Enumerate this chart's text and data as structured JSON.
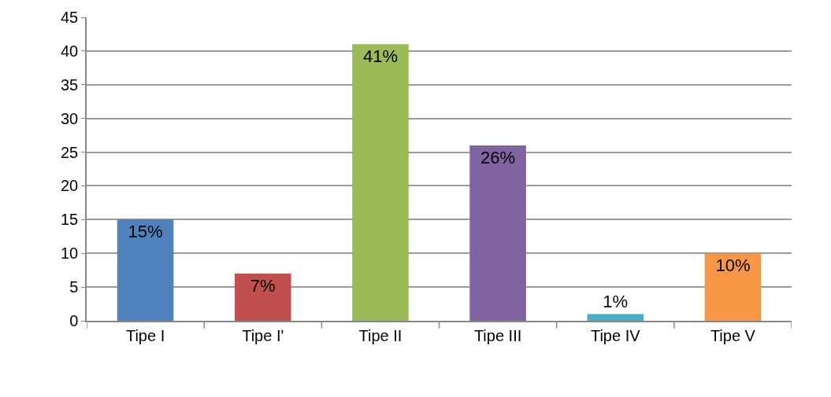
{
  "chart_data": {
    "type": "bar",
    "categories": [
      "Tipe I",
      "Tipe I'",
      "Tipe II",
      "Tipe III",
      "Tipe IV",
      "Tipe V"
    ],
    "values": [
      15,
      7,
      41,
      26,
      1,
      10
    ],
    "colors": [
      "#4f81bd",
      "#c0504d",
      "#9bbb59",
      "#8064a2",
      "#4bacc6",
      "#f79646"
    ],
    "value_labels": [
      "15%",
      "7%",
      "41%",
      "26%",
      "1%",
      "10%"
    ],
    "ylim": [
      0,
      45
    ],
    "yticks": [
      0,
      5,
      10,
      15,
      20,
      25,
      30,
      35,
      40,
      45
    ],
    "grid": "y",
    "legend": false
  }
}
